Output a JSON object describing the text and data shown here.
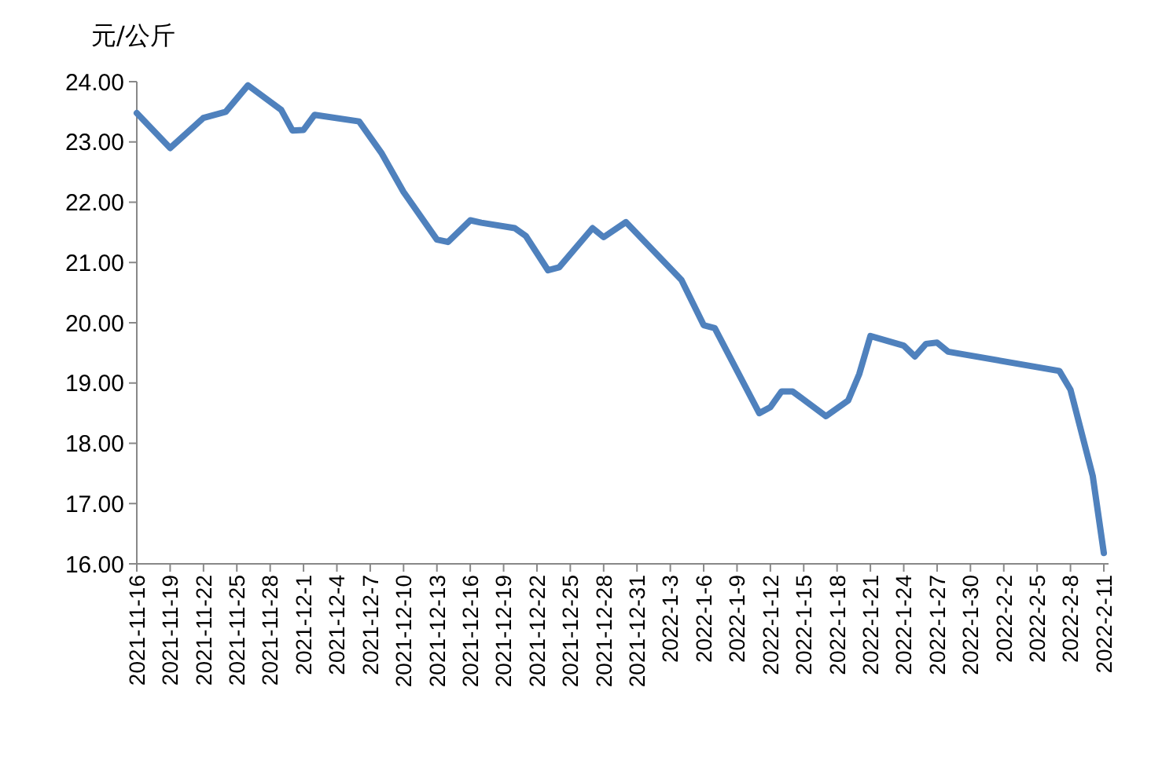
{
  "chart_data": {
    "type": "line",
    "ylabel": "元/公斤",
    "x": [
      "2021-11-16",
      "2021-11-19",
      "2021-11-22",
      "2021-11-24",
      "2021-11-26",
      "2021-11-29",
      "2021-11-30",
      "2021-12-01",
      "2021-12-02",
      "2021-12-06",
      "2021-12-08",
      "2021-12-10",
      "2021-12-13",
      "2021-12-14",
      "2021-12-16",
      "2021-12-17",
      "2021-12-20",
      "2021-12-21",
      "2021-12-23",
      "2021-12-24",
      "2021-12-27",
      "2021-12-28",
      "2021-12-30",
      "2022-01-04",
      "2022-01-06",
      "2022-01-07",
      "2022-01-11",
      "2022-01-12",
      "2022-01-13",
      "2022-01-14",
      "2022-01-17",
      "2022-01-19",
      "2022-01-20",
      "2022-01-21",
      "2022-01-24",
      "2022-01-25",
      "2022-01-26",
      "2022-01-27",
      "2022-01-28",
      "2022-02-07",
      "2022-02-08",
      "2022-02-10",
      "2022-02-11"
    ],
    "series": [
      {
        "color": "#4f81bd",
        "values": [
          23.48,
          22.9,
          23.4,
          23.5,
          23.94,
          23.53,
          23.19,
          23.2,
          23.45,
          23.34,
          22.82,
          22.17,
          21.38,
          21.34,
          21.7,
          21.66,
          21.57,
          21.44,
          20.87,
          20.92,
          21.57,
          21.42,
          21.67,
          20.71,
          19.96,
          19.91,
          18.5,
          18.6,
          18.86,
          18.86,
          18.45,
          18.71,
          19.15,
          19.78,
          19.62,
          19.44,
          19.65,
          19.67,
          19.52,
          19.2,
          18.89,
          17.46,
          16.18
        ]
      }
    ],
    "xlim": [
      "2021-11-16",
      "2022-02-11"
    ],
    "xticks": [
      {
        "value": "2021-11-16",
        "label": "2021-11-16"
      },
      {
        "value": "2021-11-19",
        "label": "2021-11-19"
      },
      {
        "value": "2021-11-22",
        "label": "2021-11-22"
      },
      {
        "value": "2021-11-25",
        "label": "2021-11-25"
      },
      {
        "value": "2021-11-28",
        "label": "2021-11-28"
      },
      {
        "value": "2021-12-01",
        "label": "2021-12-1"
      },
      {
        "value": "2021-12-04",
        "label": "2021-12-4"
      },
      {
        "value": "2021-12-07",
        "label": "2021-12-7"
      },
      {
        "value": "2021-12-10",
        "label": "2021-12-10"
      },
      {
        "value": "2021-12-13",
        "label": "2021-12-13"
      },
      {
        "value": "2021-12-16",
        "label": "2021-12-16"
      },
      {
        "value": "2021-12-19",
        "label": "2021-12-19"
      },
      {
        "value": "2021-12-22",
        "label": "2021-12-22"
      },
      {
        "value": "2021-12-25",
        "label": "2021-12-25"
      },
      {
        "value": "2021-12-28",
        "label": "2021-12-28"
      },
      {
        "value": "2021-12-31",
        "label": "2021-12-31"
      },
      {
        "value": "2022-01-03",
        "label": "2022-1-3"
      },
      {
        "value": "2022-01-06",
        "label": "2022-1-6"
      },
      {
        "value": "2022-01-09",
        "label": "2022-1-9"
      },
      {
        "value": "2022-01-12",
        "label": "2022-1-12"
      },
      {
        "value": "2022-01-15",
        "label": "2022-1-15"
      },
      {
        "value": "2022-01-18",
        "label": "2022-1-18"
      },
      {
        "value": "2022-01-21",
        "label": "2022-1-21"
      },
      {
        "value": "2022-01-24",
        "label": "2022-1-24"
      },
      {
        "value": "2022-01-27",
        "label": "2022-1-27"
      },
      {
        "value": "2022-01-30",
        "label": "2022-1-30"
      },
      {
        "value": "2022-02-02",
        "label": "2022-2-2"
      },
      {
        "value": "2022-02-05",
        "label": "2022-2-5"
      },
      {
        "value": "2022-02-08",
        "label": "2022-2-8"
      },
      {
        "value": "2022-02-11",
        "label": "2022-2-11"
      }
    ],
    "ylim": [
      16,
      24
    ],
    "yticks": [
      {
        "value": 16,
        "label": "16.00"
      },
      {
        "value": 17,
        "label": "17.00"
      },
      {
        "value": 18,
        "label": "18.00"
      },
      {
        "value": 19,
        "label": "19.00"
      },
      {
        "value": 20,
        "label": "20.00"
      },
      {
        "value": 21,
        "label": "21.00"
      },
      {
        "value": 22,
        "label": "22.00"
      },
      {
        "value": 23,
        "label": "23.00"
      },
      {
        "value": 24,
        "label": "24.00"
      }
    ]
  }
}
